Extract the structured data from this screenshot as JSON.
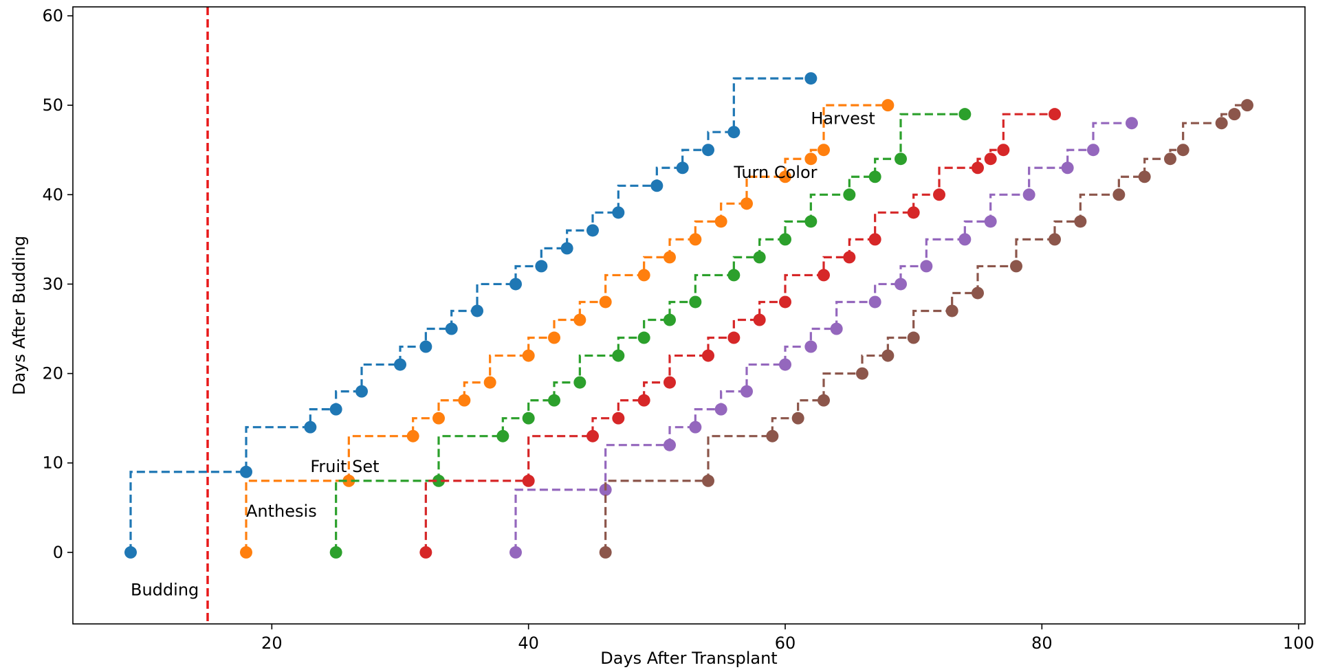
{
  "chart_data": {
    "type": "line",
    "title": "",
    "xlabel": "Days After Transplant",
    "ylabel": "Days After Budding",
    "xlim": [
      4.5,
      100.5
    ],
    "ylim": [
      -8,
      61
    ],
    "xticks": [
      20,
      40,
      60,
      80,
      100
    ],
    "yticks": [
      0,
      10,
      20,
      30,
      40,
      50,
      60
    ],
    "grid": false,
    "legend": "none",
    "line_style": "dashed step (pre) with circle markers",
    "vline": {
      "x": 15,
      "color": "#e8191a",
      "style": "dashed"
    },
    "annotations": [
      {
        "text": "Budding",
        "x": 9,
        "y": -4.2
      },
      {
        "text": "Anthesis",
        "x": 18,
        "y": 4.6
      },
      {
        "text": "Fruit Set",
        "x": 23,
        "y": 9.6
      },
      {
        "text": "Turn Color",
        "x": 56,
        "y": 42.5
      },
      {
        "text": "Harvest",
        "x": 62,
        "y": 48.5
      }
    ],
    "series": [
      {
        "color": "#1f77b4",
        "x": [
          9,
          18,
          23,
          25,
          27,
          30,
          32,
          34,
          36,
          39,
          41,
          43,
          45,
          47,
          50,
          52,
          54,
          56,
          62
        ],
        "y": [
          0,
          9,
          14,
          16,
          18,
          21,
          23,
          25,
          27,
          30,
          32,
          34,
          36,
          38,
          41,
          43,
          45,
          47,
          53
        ]
      },
      {
        "color": "#ff7f0e",
        "x": [
          18,
          26,
          31,
          33,
          35,
          37,
          40,
          42,
          44,
          46,
          49,
          51,
          53,
          55,
          57,
          60,
          62,
          63,
          68
        ],
        "y": [
          0,
          8,
          13,
          15,
          17,
          19,
          22,
          24,
          26,
          28,
          31,
          33,
          35,
          37,
          39,
          42,
          44,
          45,
          50
        ]
      },
      {
        "color": "#2ca02c",
        "x": [
          25,
          33,
          38,
          40,
          42,
          44,
          47,
          49,
          51,
          53,
          56,
          58,
          60,
          62,
          65,
          67,
          69,
          74
        ],
        "y": [
          0,
          8,
          13,
          15,
          17,
          19,
          22,
          24,
          26,
          28,
          31,
          33,
          35,
          37,
          40,
          42,
          44,
          49
        ]
      },
      {
        "color": "#d62728",
        "x": [
          32,
          40,
          45,
          47,
          49,
          51,
          54,
          56,
          58,
          60,
          63,
          65,
          67,
          70,
          72,
          75,
          76,
          77,
          81
        ],
        "y": [
          0,
          8,
          13,
          15,
          17,
          19,
          22,
          24,
          26,
          28,
          31,
          33,
          35,
          38,
          40,
          43,
          44,
          45,
          49
        ]
      },
      {
        "color": "#9467bd",
        "x": [
          39,
          46,
          51,
          53,
          55,
          57,
          60,
          62,
          64,
          67,
          69,
          71,
          74,
          76,
          79,
          82,
          84,
          87
        ],
        "y": [
          0,
          7,
          12,
          14,
          16,
          18,
          21,
          23,
          25,
          28,
          30,
          32,
          35,
          37,
          40,
          43,
          45,
          48
        ]
      },
      {
        "color": "#8c564b",
        "x": [
          46,
          54,
          59,
          61,
          63,
          66,
          68,
          70,
          73,
          75,
          78,
          81,
          83,
          86,
          88,
          90,
          91,
          94,
          95,
          96
        ],
        "y": [
          0,
          8,
          13,
          15,
          17,
          20,
          22,
          24,
          27,
          29,
          32,
          35,
          37,
          40,
          42,
          44,
          45,
          48,
          49,
          50
        ]
      }
    ]
  }
}
